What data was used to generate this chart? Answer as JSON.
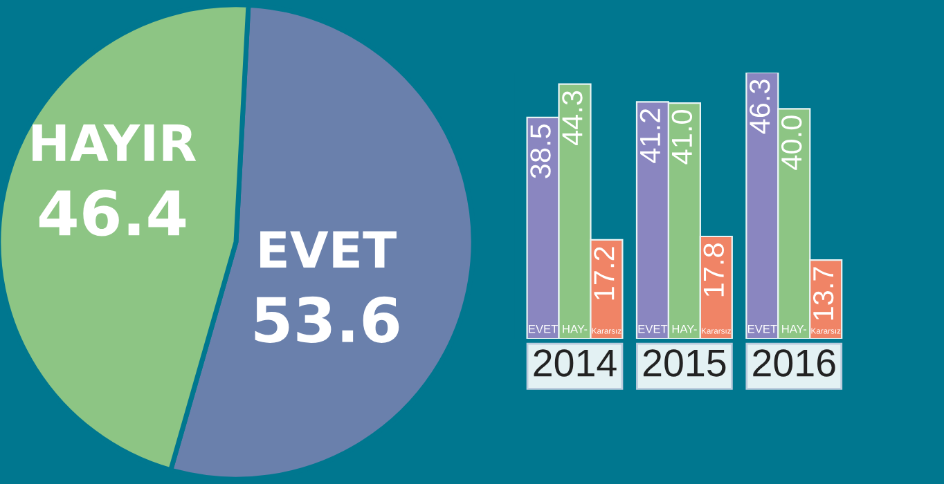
{
  "chart_data": [
    {
      "type": "pie",
      "categories": [
        "EVET",
        "HAYIR"
      ],
      "values": [
        53.6,
        46.4
      ],
      "colors": [
        "#6a80ac",
        "#8dc584"
      ],
      "data_labels": true
    },
    {
      "type": "bar",
      "categories": [
        "2014",
        "2015",
        "2016"
      ],
      "data_labels": true,
      "legend": false,
      "series": [
        {
          "name": "EVET",
          "color": "#8a86c0",
          "values": [
            38.5,
            41.2,
            46.3
          ],
          "value_labels": [
            "38.5",
            "41.2",
            "46.3"
          ]
        },
        {
          "name": "HAY-",
          "color": "#8dc584",
          "values": [
            44.3,
            41.0,
            40.0
          ],
          "value_labels": [
            "44.3",
            "41.0",
            "40.0"
          ]
        },
        {
          "name": "Kararsız",
          "color": "#f08466",
          "values": [
            17.2,
            17.8,
            13.7
          ],
          "value_labels": [
            "17.2",
            "17.8",
            "13.7"
          ]
        }
      ]
    }
  ]
}
